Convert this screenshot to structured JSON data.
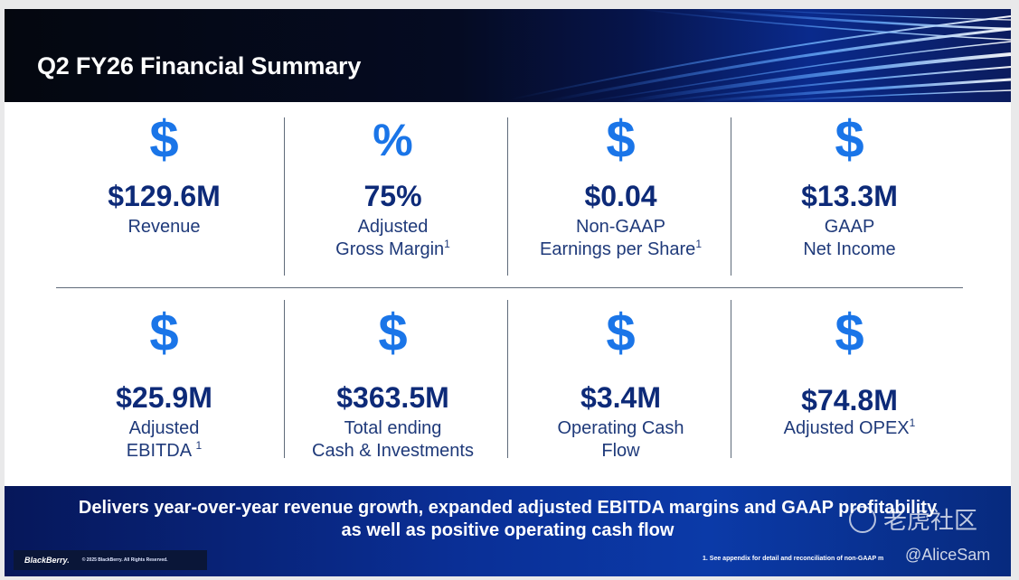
{
  "header": {
    "title": "Q2 FY26 Financial Summary"
  },
  "metrics": [
    {
      "icon": "dollar-icon",
      "glyph": "$",
      "value": "$129.6M",
      "label_lines": [
        "Revenue"
      ],
      "sup": ""
    },
    {
      "icon": "percent-icon",
      "glyph": "%",
      "value": "75%",
      "label_lines": [
        "Adjusted",
        "Gross Margin"
      ],
      "sup": "1"
    },
    {
      "icon": "dollar-icon",
      "glyph": "$",
      "value": "$0.04",
      "label_lines": [
        "Non-GAAP",
        "Earnings per Share"
      ],
      "sup": "1"
    },
    {
      "icon": "dollar-icon",
      "glyph": "$",
      "value": "$13.3M",
      "label_lines": [
        "GAAP",
        "Net Income"
      ],
      "sup": ""
    },
    {
      "icon": "dollar-icon",
      "glyph": "$",
      "value": "$25.9M",
      "label_lines": [
        "Adjusted",
        "EBITDA "
      ],
      "sup": "1"
    },
    {
      "icon": "dollar-icon",
      "glyph": "$",
      "value": "$363.5M",
      "label_lines": [
        "Total ending",
        "Cash & Investments"
      ],
      "sup": ""
    },
    {
      "icon": "dollar-icon",
      "glyph": "$",
      "value": "$3.4M",
      "label_lines": [
        "Operating Cash",
        "Flow"
      ],
      "sup": ""
    },
    {
      "icon": "dollar-icon",
      "glyph": "$",
      "value": "$74.8M",
      "label_lines": [
        "Adjusted OPEX"
      ],
      "sup": "1"
    }
  ],
  "footer": {
    "tagline_line1": "Delivers year-over-year revenue growth, expanded adjusted EBITDA margins and GAAP profitability",
    "tagline_line2": "as well as positive operating cash flow",
    "logo_text": "BlackBerry.",
    "copyright": "© 2025 BlackBerry. All Rights Reserved.",
    "footnote": "1. See appendix for detail and reconciliation of non-GAAP m",
    "watermark": "老虎社区",
    "handle": "@AliceSam"
  },
  "colors": {
    "accent": "#1a75e8",
    "value": "#0d2a78",
    "label": "#1f3a7a"
  }
}
